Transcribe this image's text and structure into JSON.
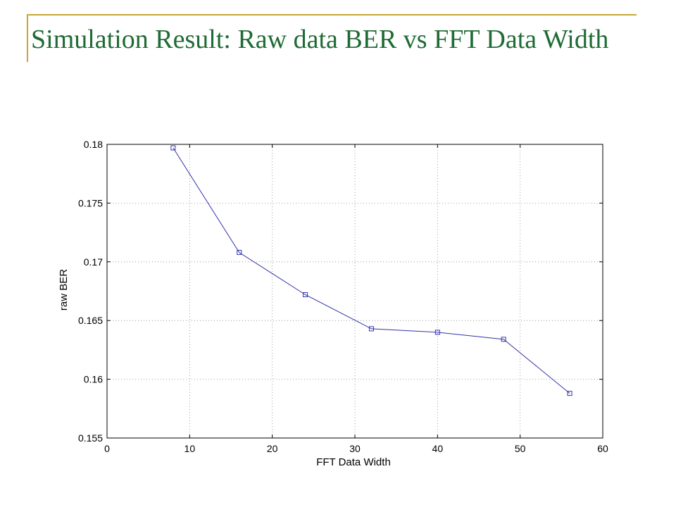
{
  "slide": {
    "title": "Simulation Result: Raw data BER vs FFT Data Width",
    "accent_color": "#c8a836",
    "title_color": "#1f6b35"
  },
  "chart_data": {
    "type": "line",
    "title": "",
    "xlabel": "FFT Data Width",
    "ylabel": "raw BER",
    "xlim": [
      0,
      60
    ],
    "ylim": [
      0.155,
      0.18
    ],
    "xticks": [
      0,
      10,
      20,
      30,
      40,
      50,
      60
    ],
    "yticks": [
      0.155,
      0.16,
      0.165,
      0.17,
      0.175,
      0.18
    ],
    "ytick_labels": [
      "0.155",
      "0.16",
      "0.165",
      "0.17",
      "0.175",
      "0.18"
    ],
    "grid": true,
    "marker": "square",
    "line_color": "#3333aa",
    "series": [
      {
        "x": [
          8,
          16,
          24,
          32,
          40,
          48,
          56
        ],
        "y": [
          0.1797,
          0.1708,
          0.1672,
          0.1643,
          0.164,
          0.1634,
          0.1588
        ]
      }
    ]
  }
}
